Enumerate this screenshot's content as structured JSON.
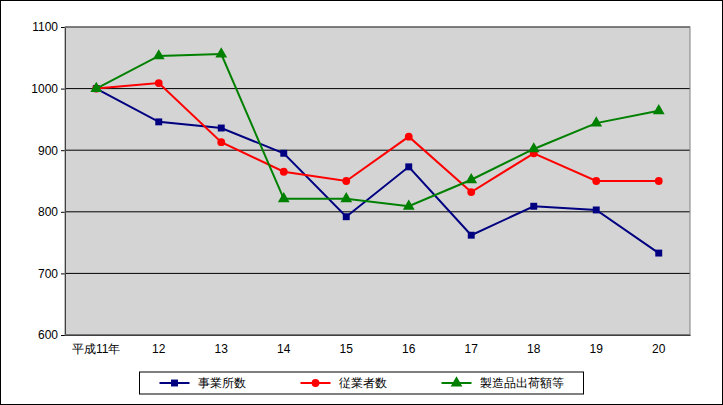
{
  "chart_data": {
    "type": "line",
    "categories": [
      "平成11年",
      "12",
      "13",
      "14",
      "15",
      "16",
      "17",
      "18",
      "19",
      "20"
    ],
    "series": [
      {
        "name": "事業所数",
        "color": "#000080",
        "marker": "square",
        "values": [
          1000,
          946,
          936,
          895,
          792,
          873,
          762,
          809,
          803,
          733
        ]
      },
      {
        "name": "従業者数",
        "color": "#ff0000",
        "marker": "circle",
        "values": [
          1000,
          1009,
          913,
          865,
          850,
          922,
          832,
          895,
          850,
          850
        ]
      },
      {
        "name": "製造品出荷額等",
        "color": "#008000",
        "marker": "triangle",
        "values": [
          1000,
          1053,
          1056,
          821,
          821,
          809,
          852,
          902,
          944,
          964
        ]
      }
    ],
    "ylim": [
      600,
      1100
    ],
    "yticks": [
      600,
      700,
      800,
      900,
      1000,
      1100
    ],
    "grid": true,
    "legend": "bottom"
  }
}
